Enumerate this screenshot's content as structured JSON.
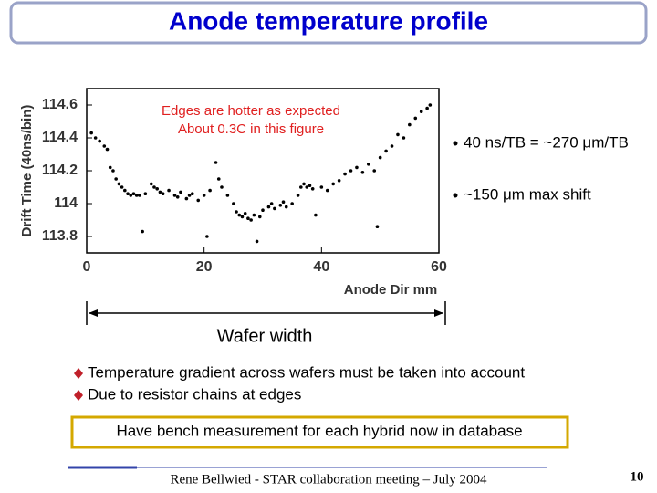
{
  "title": "Anode temperature profile",
  "chart_data": {
    "type": "scatter",
    "y_label": "Drift Time (40ns/bin)",
    "x_label": "Anode Dir mm",
    "annotations": [
      "Edges are hotter as expected",
      "About 0.3C in this figure"
    ],
    "color": "#000000",
    "xlim": [
      0,
      60
    ],
    "xticks": [
      0,
      20,
      40,
      60
    ],
    "ylim": [
      113.7,
      114.7
    ],
    "yticks": [
      113.8,
      114,
      114.2,
      114.4,
      114.6
    ],
    "x": [
      0.8,
      1.5,
      2.2,
      3,
      3.5,
      4,
      4.5,
      5,
      5.5,
      6,
      6.5,
      7,
      7.5,
      8,
      8.5,
      9,
      9.5,
      10,
      11,
      11.5,
      12,
      12.5,
      13,
      14,
      15,
      15.5,
      16,
      17,
      17.5,
      18,
      19,
      20,
      20.5,
      21,
      22,
      22.5,
      23,
      24,
      25,
      25.5,
      26,
      26.5,
      27,
      27.5,
      28,
      28.5,
      29,
      29.5,
      30,
      31,
      31.5,
      32,
      33,
      33.5,
      34,
      35,
      36,
      36.5,
      37,
      37.5,
      38,
      38.5,
      39,
      40,
      41,
      42,
      43,
      44,
      45,
      46,
      47,
      48,
      49,
      49.5,
      50,
      51,
      52,
      53,
      54,
      55,
      56,
      57,
      58,
      58.5
    ],
    "values": [
      114.43,
      114.4,
      114.38,
      114.35,
      114.33,
      114.22,
      114.2,
      114.15,
      114.12,
      114.1,
      114.08,
      114.06,
      114.05,
      114.06,
      114.05,
      114.05,
      113.83,
      114.06,
      114.12,
      114.1,
      114.09,
      114.07,
      114.06,
      114.08,
      114.05,
      114.04,
      114.07,
      114.03,
      114.05,
      114.06,
      114.02,
      114.05,
      113.8,
      114.08,
      114.25,
      114.15,
      114.1,
      114.05,
      114.0,
      113.95,
      113.93,
      113.92,
      113.94,
      113.91,
      113.9,
      113.93,
      113.77,
      113.92,
      113.96,
      113.98,
      114.0,
      113.97,
      113.99,
      114.01,
      113.98,
      114.0,
      114.05,
      114.1,
      114.12,
      114.1,
      114.11,
      114.09,
      113.93,
      114.1,
      114.08,
      114.12,
      114.14,
      114.18,
      114.2,
      114.22,
      114.19,
      114.24,
      114.2,
      113.86,
      114.28,
      114.32,
      114.35,
      114.42,
      114.4,
      114.48,
      114.52,
      114.56,
      114.58,
      114.6
    ]
  },
  "side_notes": [
    "40 ns/TB = ~270 μm/TB",
    "~150 μm max shift"
  ],
  "wafer_label": "Wafer width",
  "bullets": [
    "Temperature gradient across wafers must be taken into account",
    "Due to resistor chains at edges"
  ],
  "highlight": "Have bench measurement for each hybrid now in database",
  "footer": "Rene Bellwied - STAR collaboration meeting – July 2004",
  "page_number": "10"
}
